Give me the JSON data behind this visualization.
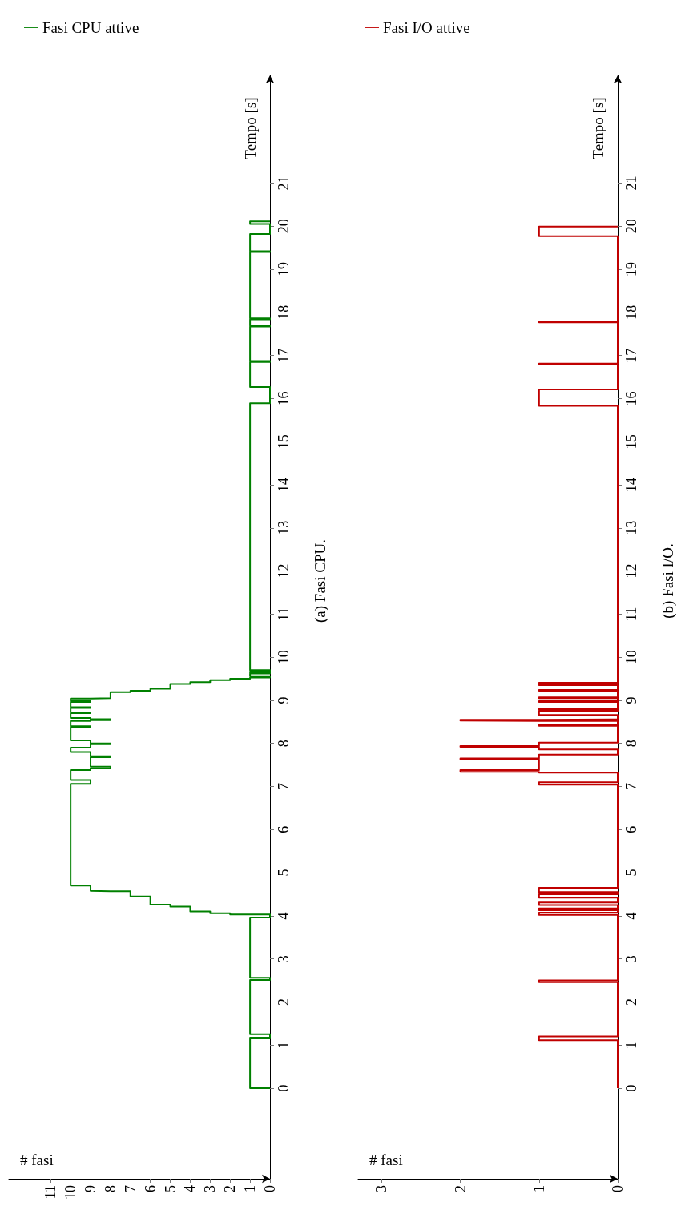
{
  "chart_data": [
    {
      "type": "step",
      "xlabel": "# fasi",
      "ylabel": "Tempo [s]",
      "ylim": [
        -2.1,
        23.5
      ],
      "yticks": [
        0,
        1,
        2,
        3,
        4,
        5,
        6,
        7,
        8,
        9,
        10,
        11,
        12,
        13,
        14,
        15,
        16,
        17,
        18,
        19,
        20,
        21
      ],
      "xlim": [
        13.1,
        0
      ],
      "xticks": [
        0,
        1,
        2,
        3,
        4,
        5,
        6,
        7,
        8,
        9,
        10,
        11
      ],
      "legend": "top left",
      "marker": "none",
      "annotations": [
        "(a) Fasi CPU."
      ],
      "series": [
        {
          "name": "Fasi CPU attive",
          "color": "#008000",
          "values": [
            0,
            0,
            1.17,
            1.25,
            2.51,
            2.56,
            3.96,
            4.03,
            4.06,
            4.1,
            4.21,
            4.26,
            4.45,
            4.57,
            4.58,
            4.7,
            7.06,
            7.15,
            7.38,
            7.42,
            7.46,
            7.68,
            7.7,
            7.8,
            7.9,
            7.98,
            8.0,
            8.07,
            8.38,
            8.4,
            8.52,
            8.54,
            8.56,
            8.59,
            8.7,
            8.72,
            8.82,
            8.84,
            8.96,
            8.98,
            9.04,
            9.05,
            9.19,
            9.22,
            9.27,
            9.38,
            9.42,
            9.47,
            9.5,
            9.53,
            9.56,
            9.62,
            9.64,
            9.67,
            9.7,
            15.89,
            16.27,
            16.85,
            16.87,
            17.67,
            17.69,
            17.84,
            17.86,
            19.4,
            19.42,
            19.82,
            20.05,
            20.11
          ],
          "x": [
            0,
            1,
            0,
            1,
            0,
            1,
            0,
            2,
            3,
            4,
            5,
            6,
            7,
            8,
            9,
            10,
            9,
            10,
            9,
            8,
            9,
            8,
            9,
            10,
            9,
            8,
            9,
            10,
            9,
            10,
            9,
            8,
            9,
            10,
            9,
            10,
            9,
            10,
            9,
            10,
            9,
            8,
            7,
            6,
            5,
            4,
            3,
            2,
            1,
            0,
            1,
            0,
            1,
            0,
            1,
            0,
            1,
            0,
            1,
            0,
            1,
            0,
            1,
            0,
            1,
            0,
            1,
            0
          ]
        }
      ]
    },
    {
      "type": "step",
      "xlabel": "# fasi",
      "ylabel": "Tempo [s]",
      "ylim": [
        -2.1,
        23.5
      ],
      "yticks": [
        0,
        1,
        2,
        3,
        4,
        5,
        6,
        7,
        8,
        9,
        10,
        11,
        12,
        13,
        14,
        15,
        16,
        17,
        18,
        19,
        20,
        21
      ],
      "xlim": [
        3.3,
        0
      ],
      "xticks": [
        0,
        1,
        2,
        3
      ],
      "legend": "top left",
      "marker": "none",
      "annotations": [
        "(b) Fasi I/O."
      ],
      "series": [
        {
          "name": "Fasi I/O attive",
          "color": "#c00000",
          "values": [
            0,
            1.11,
            1.2,
            2.46,
            2.5,
            4.02,
            4.07,
            4.13,
            4.17,
            4.25,
            4.31,
            4.42,
            4.5,
            4.55,
            4.65,
            7.04,
            7.1,
            7.32,
            7.34,
            7.38,
            7.63,
            7.65,
            7.74,
            7.86,
            7.92,
            7.94,
            8.02,
            8.41,
            8.43,
            8.52,
            8.53,
            8.55,
            8.56,
            8.66,
            8.75,
            8.78,
            8.8,
            8.96,
            8.98,
            9.05,
            9.07,
            9.22,
            9.24,
            9.35,
            9.37,
            9.39,
            9.41,
            15.83,
            16.21,
            16.79,
            16.81,
            17.77,
            17.79,
            19.77,
            19.99
          ],
          "x": [
            0,
            1,
            0,
            1,
            0,
            1,
            0,
            1,
            0,
            1,
            0,
            1,
            0,
            1,
            0,
            1,
            0,
            1,
            2,
            1,
            2,
            1,
            0,
            1,
            2,
            1,
            0,
            1,
            0,
            1,
            2,
            1,
            0,
            1,
            0,
            1,
            0,
            1,
            0,
            1,
            0,
            1,
            0,
            1,
            0,
            1,
            0,
            1,
            0,
            1,
            0,
            1,
            0,
            1,
            0
          ]
        }
      ]
    }
  ]
}
